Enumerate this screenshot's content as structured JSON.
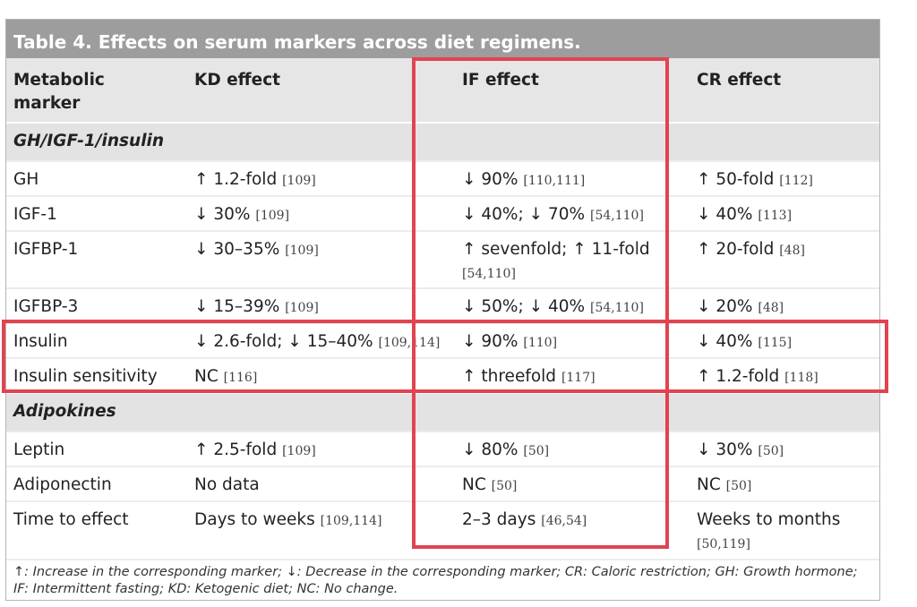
{
  "title": "Table 4. Effects on serum markers across diet regimens.",
  "headers": [
    "Metabolic marker",
    "KD effect",
    "IF effect",
    "CR effect"
  ],
  "sections": [
    {
      "label": "GH/IGF-1/insulin",
      "rows": [
        {
          "marker": "GH",
          "kd": {
            "t": "↑ 1.2-fold",
            "r": "[109]"
          },
          "if": {
            "t": "↓ 90%",
            "r": "[110,111]"
          },
          "cr": {
            "t": "↑ 50-fold",
            "r": "[112]"
          }
        },
        {
          "marker": "IGF-1",
          "kd": {
            "t": "↓ 30%",
            "r": "[109]"
          },
          "if": {
            "t": "↓ 40%; ↓ 70%",
            "r": "[54,110]"
          },
          "cr": {
            "t": "↓ 40%",
            "r": "[113]"
          }
        },
        {
          "marker": "IGFBP-1",
          "kd": {
            "t": "↓ 30–35%",
            "r": "[109]"
          },
          "if": {
            "t": "↑ sevenfold; ↑ 11-fold",
            "r": "[54,110]"
          },
          "cr": {
            "t": "↑ 20-fold",
            "r": "[48]"
          }
        },
        {
          "marker": "IGFBP-3",
          "kd": {
            "t": "↓ 15–39%",
            "r": "[109]"
          },
          "if": {
            "t": "↓ 50%; ↓ 40%",
            "r": "[54,110]"
          },
          "cr": {
            "t": "↓ 20%",
            "r": "[48]"
          }
        },
        {
          "marker": "Insulin",
          "kd": {
            "t": "↓ 2.6-fold; ↓ 15–40%",
            "r": "[109,114]"
          },
          "if": {
            "t": "↓ 90%",
            "r": "[110]"
          },
          "cr": {
            "t": "↓ 40%",
            "r": "[115]"
          }
        },
        {
          "marker": "Insulin sensitivity",
          "kd": {
            "t": "NC",
            "r": "[116]"
          },
          "if": {
            "t": "↑ threefold",
            "r": "[117]"
          },
          "cr": {
            "t": "↑ 1.2-fold",
            "r": "[118]"
          }
        }
      ]
    },
    {
      "label": "Adipokines",
      "rows": [
        {
          "marker": "Leptin",
          "kd": {
            "t": "↑ 2.5-fold",
            "r": "[109]"
          },
          "if": {
            "t": "↓ 80%",
            "r": "[50]"
          },
          "cr": {
            "t": "↓ 30%",
            "r": "[50]"
          }
        },
        {
          "marker": "Adiponectin",
          "kd": {
            "t": "No data",
            "r": ""
          },
          "if": {
            "t": "NC",
            "r": "[50]"
          },
          "cr": {
            "t": "NC",
            "r": "[50]"
          }
        },
        {
          "marker": "Time to effect",
          "kd": {
            "t": "Days to weeks",
            "r": "[109,114]"
          },
          "if": {
            "t": "2–3 days",
            "r": "[46,54]"
          },
          "cr": {
            "t": "Weeks to months",
            "r": "[50,119]"
          }
        }
      ]
    }
  ],
  "footnote": "↑: Increase in the corresponding marker; ↓: Decrease in the corresponding marker; CR: Caloric restriction; GH: Growth hormone; IF: Intermittent fasting; KD: Ketogenic diet; NC: No change.",
  "highlight_color": "#e04450"
}
